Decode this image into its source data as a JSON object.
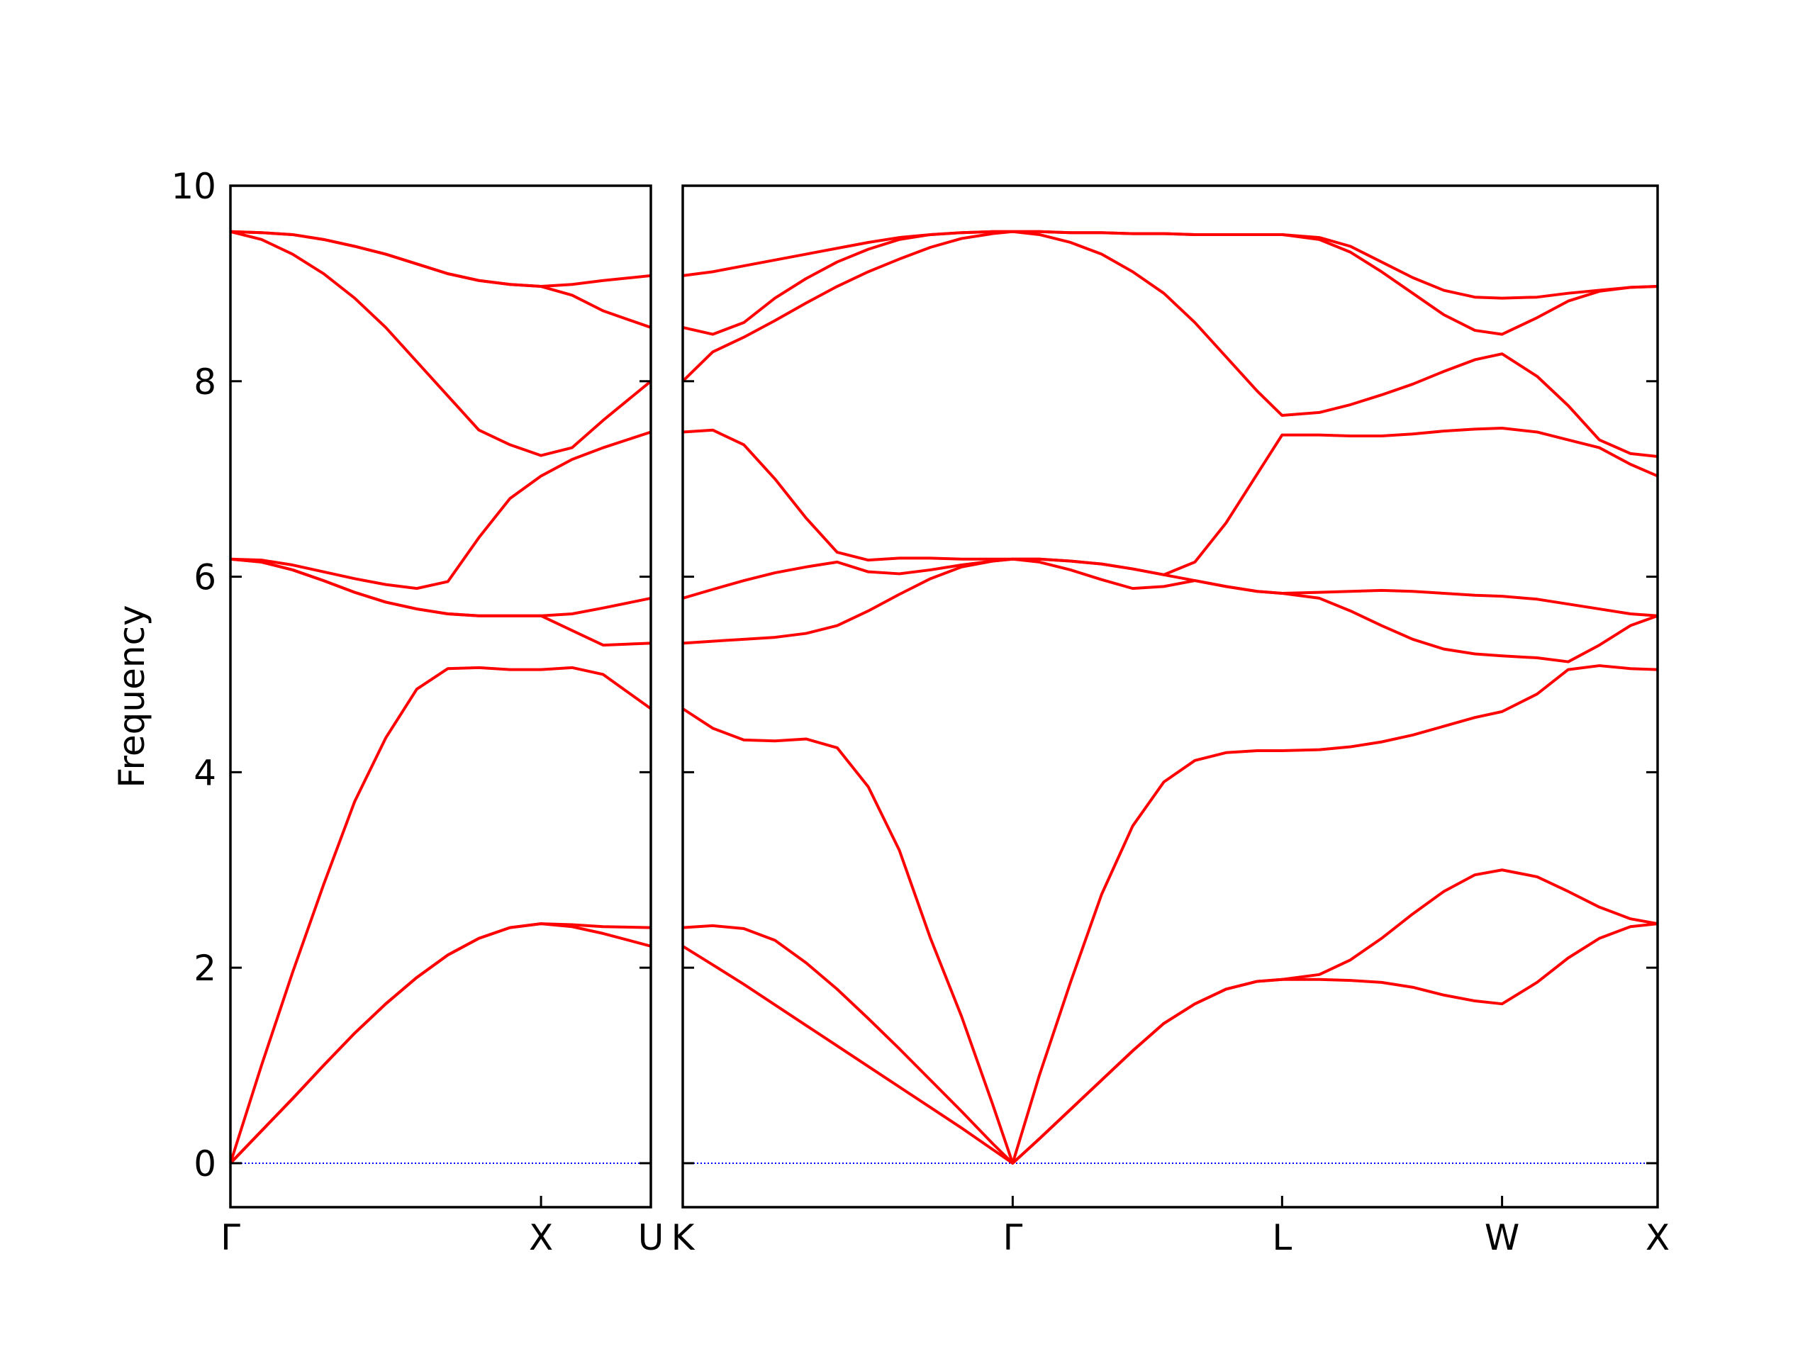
{
  "chart_data": [
    {
      "type": "line",
      "ylabel": "Frequency",
      "color": "#ff0000",
      "zero_line_color": "#0000ff",
      "ylim": [
        -0.45,
        10
      ],
      "yticks": [
        0,
        2,
        4,
        6,
        8,
        10
      ],
      "xlim": [
        0,
        1.3536
      ],
      "xticks": [
        {
          "value": 0,
          "label": "Γ"
        },
        {
          "value": 1,
          "label": "X"
        },
        {
          "value": 1.3536,
          "label": "U"
        }
      ],
      "x": [
        0,
        0.1,
        0.2,
        0.3,
        0.4,
        0.5,
        0.6,
        0.7,
        0.8,
        0.9,
        1.0,
        1.1,
        1.2,
        1.3536
      ],
      "series": [
        {
          "values": [
            0,
            0.33,
            0.66,
            1.0,
            1.33,
            1.63,
            1.9,
            2.13,
            2.3,
            2.41,
            2.45,
            2.42,
            2.35,
            2.22
          ]
        },
        {
          "values": [
            0,
            0.33,
            0.66,
            1.0,
            1.33,
            1.63,
            1.9,
            2.13,
            2.3,
            2.41,
            2.45,
            2.44,
            2.42,
            2.41
          ]
        },
        {
          "values": [
            0,
            1.0,
            1.95,
            2.85,
            3.7,
            4.35,
            4.85,
            5.06,
            5.07,
            5.05,
            5.05,
            5.07,
            5.0,
            4.65
          ]
        },
        {
          "values": [
            6.18,
            6.15,
            6.07,
            5.96,
            5.84,
            5.74,
            5.67,
            5.62,
            5.6,
            5.6,
            5.6,
            5.45,
            5.3,
            5.32
          ]
        },
        {
          "values": [
            6.18,
            6.15,
            6.07,
            5.96,
            5.84,
            5.74,
            5.67,
            5.62,
            5.6,
            5.6,
            5.6,
            5.62,
            5.68,
            5.78
          ]
        },
        {
          "values": [
            6.18,
            6.17,
            6.12,
            6.05,
            5.98,
            5.92,
            5.88,
            5.95,
            6.4,
            6.8,
            7.03,
            7.2,
            7.32,
            7.48
          ]
        },
        {
          "values": [
            9.53,
            9.45,
            9.3,
            9.1,
            8.85,
            8.55,
            8.2,
            7.85,
            7.5,
            7.35,
            7.24,
            7.32,
            7.6,
            8.0
          ]
        },
        {
          "values": [
            9.53,
            9.52,
            9.5,
            9.45,
            9.38,
            9.3,
            9.2,
            9.1,
            9.03,
            8.99,
            8.97,
            8.88,
            8.72,
            8.55
          ]
        },
        {
          "values": [
            9.53,
            9.52,
            9.5,
            9.45,
            9.38,
            9.3,
            9.2,
            9.1,
            9.03,
            8.99,
            8.97,
            8.99,
            9.03,
            9.08
          ]
        }
      ]
    },
    {
      "type": "line",
      "color": "#ff0000",
      "zero_line_color": "#0000ff",
      "ylim": [
        -0.45,
        10
      ],
      "xlim": [
        1.3536,
        4.4873
      ],
      "xticks": [
        {
          "value": 1.3536,
          "label": "K"
        },
        {
          "value": 2.4142,
          "label": "Γ"
        },
        {
          "value": 3.2802,
          "label": "L"
        },
        {
          "value": 3.9873,
          "label": "W"
        },
        {
          "value": 4.4873,
          "label": "X"
        }
      ],
      "x": [
        1.3536,
        1.45,
        1.55,
        1.65,
        1.75,
        1.85,
        1.95,
        2.05,
        2.15,
        2.25,
        2.35,
        2.4142,
        2.5,
        2.6,
        2.7,
        2.8,
        2.9,
        3.0,
        3.1,
        3.2,
        3.2802,
        3.4,
        3.5,
        3.6,
        3.7,
        3.8,
        3.9,
        3.9873,
        4.1,
        4.2,
        4.3,
        4.4,
        4.4873
      ],
      "series": [
        {
          "values": [
            2.22,
            2.03,
            1.83,
            1.62,
            1.41,
            1.2,
            0.99,
            0.78,
            0.57,
            0.36,
            0.14,
            0,
            0.25,
            0.55,
            0.85,
            1.15,
            1.43,
            1.63,
            1.78,
            1.86,
            1.88,
            1.88,
            1.87,
            1.85,
            1.8,
            1.72,
            1.66,
            1.63,
            1.85,
            2.1,
            2.3,
            2.42,
            2.45
          ]
        },
        {
          "values": [
            2.41,
            2.43,
            2.4,
            2.28,
            2.05,
            1.78,
            1.48,
            1.17,
            0.85,
            0.53,
            0.2,
            0,
            0.25,
            0.55,
            0.85,
            1.15,
            1.43,
            1.63,
            1.78,
            1.86,
            1.88,
            1.93,
            2.08,
            2.3,
            2.55,
            2.78,
            2.95,
            3.0,
            2.93,
            2.78,
            2.62,
            2.5,
            2.45
          ]
        },
        {
          "values": [
            4.65,
            4.45,
            4.33,
            4.32,
            4.34,
            4.25,
            3.85,
            3.2,
            2.3,
            1.5,
            0.6,
            0,
            0.9,
            1.85,
            2.75,
            3.45,
            3.9,
            4.12,
            4.2,
            4.22,
            4.22,
            4.23,
            4.26,
            4.31,
            4.38,
            4.47,
            4.56,
            4.62,
            4.8,
            5.05,
            5.09,
            5.06,
            5.05
          ]
        },
        {
          "values": [
            5.32,
            5.34,
            5.36,
            5.38,
            5.42,
            5.5,
            5.65,
            5.82,
            5.98,
            6.1,
            6.16,
            6.18,
            6.15,
            6.07,
            5.97,
            5.88,
            5.9,
            5.96,
            5.9,
            5.85,
            5.83,
            5.78,
            5.65,
            5.5,
            5.36,
            5.26,
            5.21,
            5.19,
            5.17,
            5.13,
            5.3,
            5.5,
            5.6
          ]
        },
        {
          "values": [
            5.78,
            5.87,
            5.96,
            6.04,
            6.1,
            6.15,
            6.05,
            6.03,
            6.07,
            6.12,
            6.16,
            6.18,
            6.18,
            6.16,
            6.13,
            6.08,
            6.02,
            5.96,
            5.9,
            5.85,
            5.83,
            5.84,
            5.85,
            5.86,
            5.85,
            5.83,
            5.81,
            5.8,
            5.77,
            5.72,
            5.67,
            5.62,
            5.6
          ]
        },
        {
          "values": [
            7.48,
            7.5,
            7.35,
            7.0,
            6.6,
            6.25,
            6.17,
            6.19,
            6.19,
            6.18,
            6.18,
            6.18,
            6.18,
            6.16,
            6.13,
            6.08,
            6.02,
            6.15,
            6.55,
            7.05,
            7.45,
            7.45,
            7.44,
            7.44,
            7.46,
            7.49,
            7.51,
            7.52,
            7.48,
            7.4,
            7.32,
            7.15,
            7.03
          ]
        },
        {
          "values": [
            8.0,
            8.3,
            8.45,
            8.62,
            8.8,
            8.97,
            9.12,
            9.25,
            9.37,
            9.46,
            9.51,
            9.53,
            9.5,
            9.42,
            9.3,
            9.12,
            8.9,
            8.6,
            8.25,
            7.9,
            7.65,
            7.68,
            7.76,
            7.86,
            7.97,
            8.1,
            8.22,
            8.28,
            8.05,
            7.75,
            7.4,
            7.26,
            7.23
          ]
        },
        {
          "values": [
            8.55,
            8.48,
            8.6,
            8.85,
            9.05,
            9.22,
            9.35,
            9.45,
            9.5,
            9.52,
            9.53,
            9.53,
            9.53,
            9.52,
            9.52,
            9.51,
            9.51,
            9.5,
            9.5,
            9.5,
            9.5,
            9.45,
            9.32,
            9.12,
            8.9,
            8.68,
            8.52,
            8.48,
            8.65,
            8.82,
            8.92,
            8.96,
            8.97
          ]
        },
        {
          "values": [
            9.08,
            9.12,
            9.18,
            9.24,
            9.3,
            9.36,
            9.42,
            9.47,
            9.5,
            9.52,
            9.53,
            9.53,
            9.53,
            9.52,
            9.52,
            9.51,
            9.51,
            9.5,
            9.5,
            9.5,
            9.5,
            9.47,
            9.38,
            9.22,
            9.06,
            8.93,
            8.86,
            8.85,
            8.86,
            8.9,
            8.93,
            8.96,
            8.97
          ]
        }
      ]
    }
  ]
}
